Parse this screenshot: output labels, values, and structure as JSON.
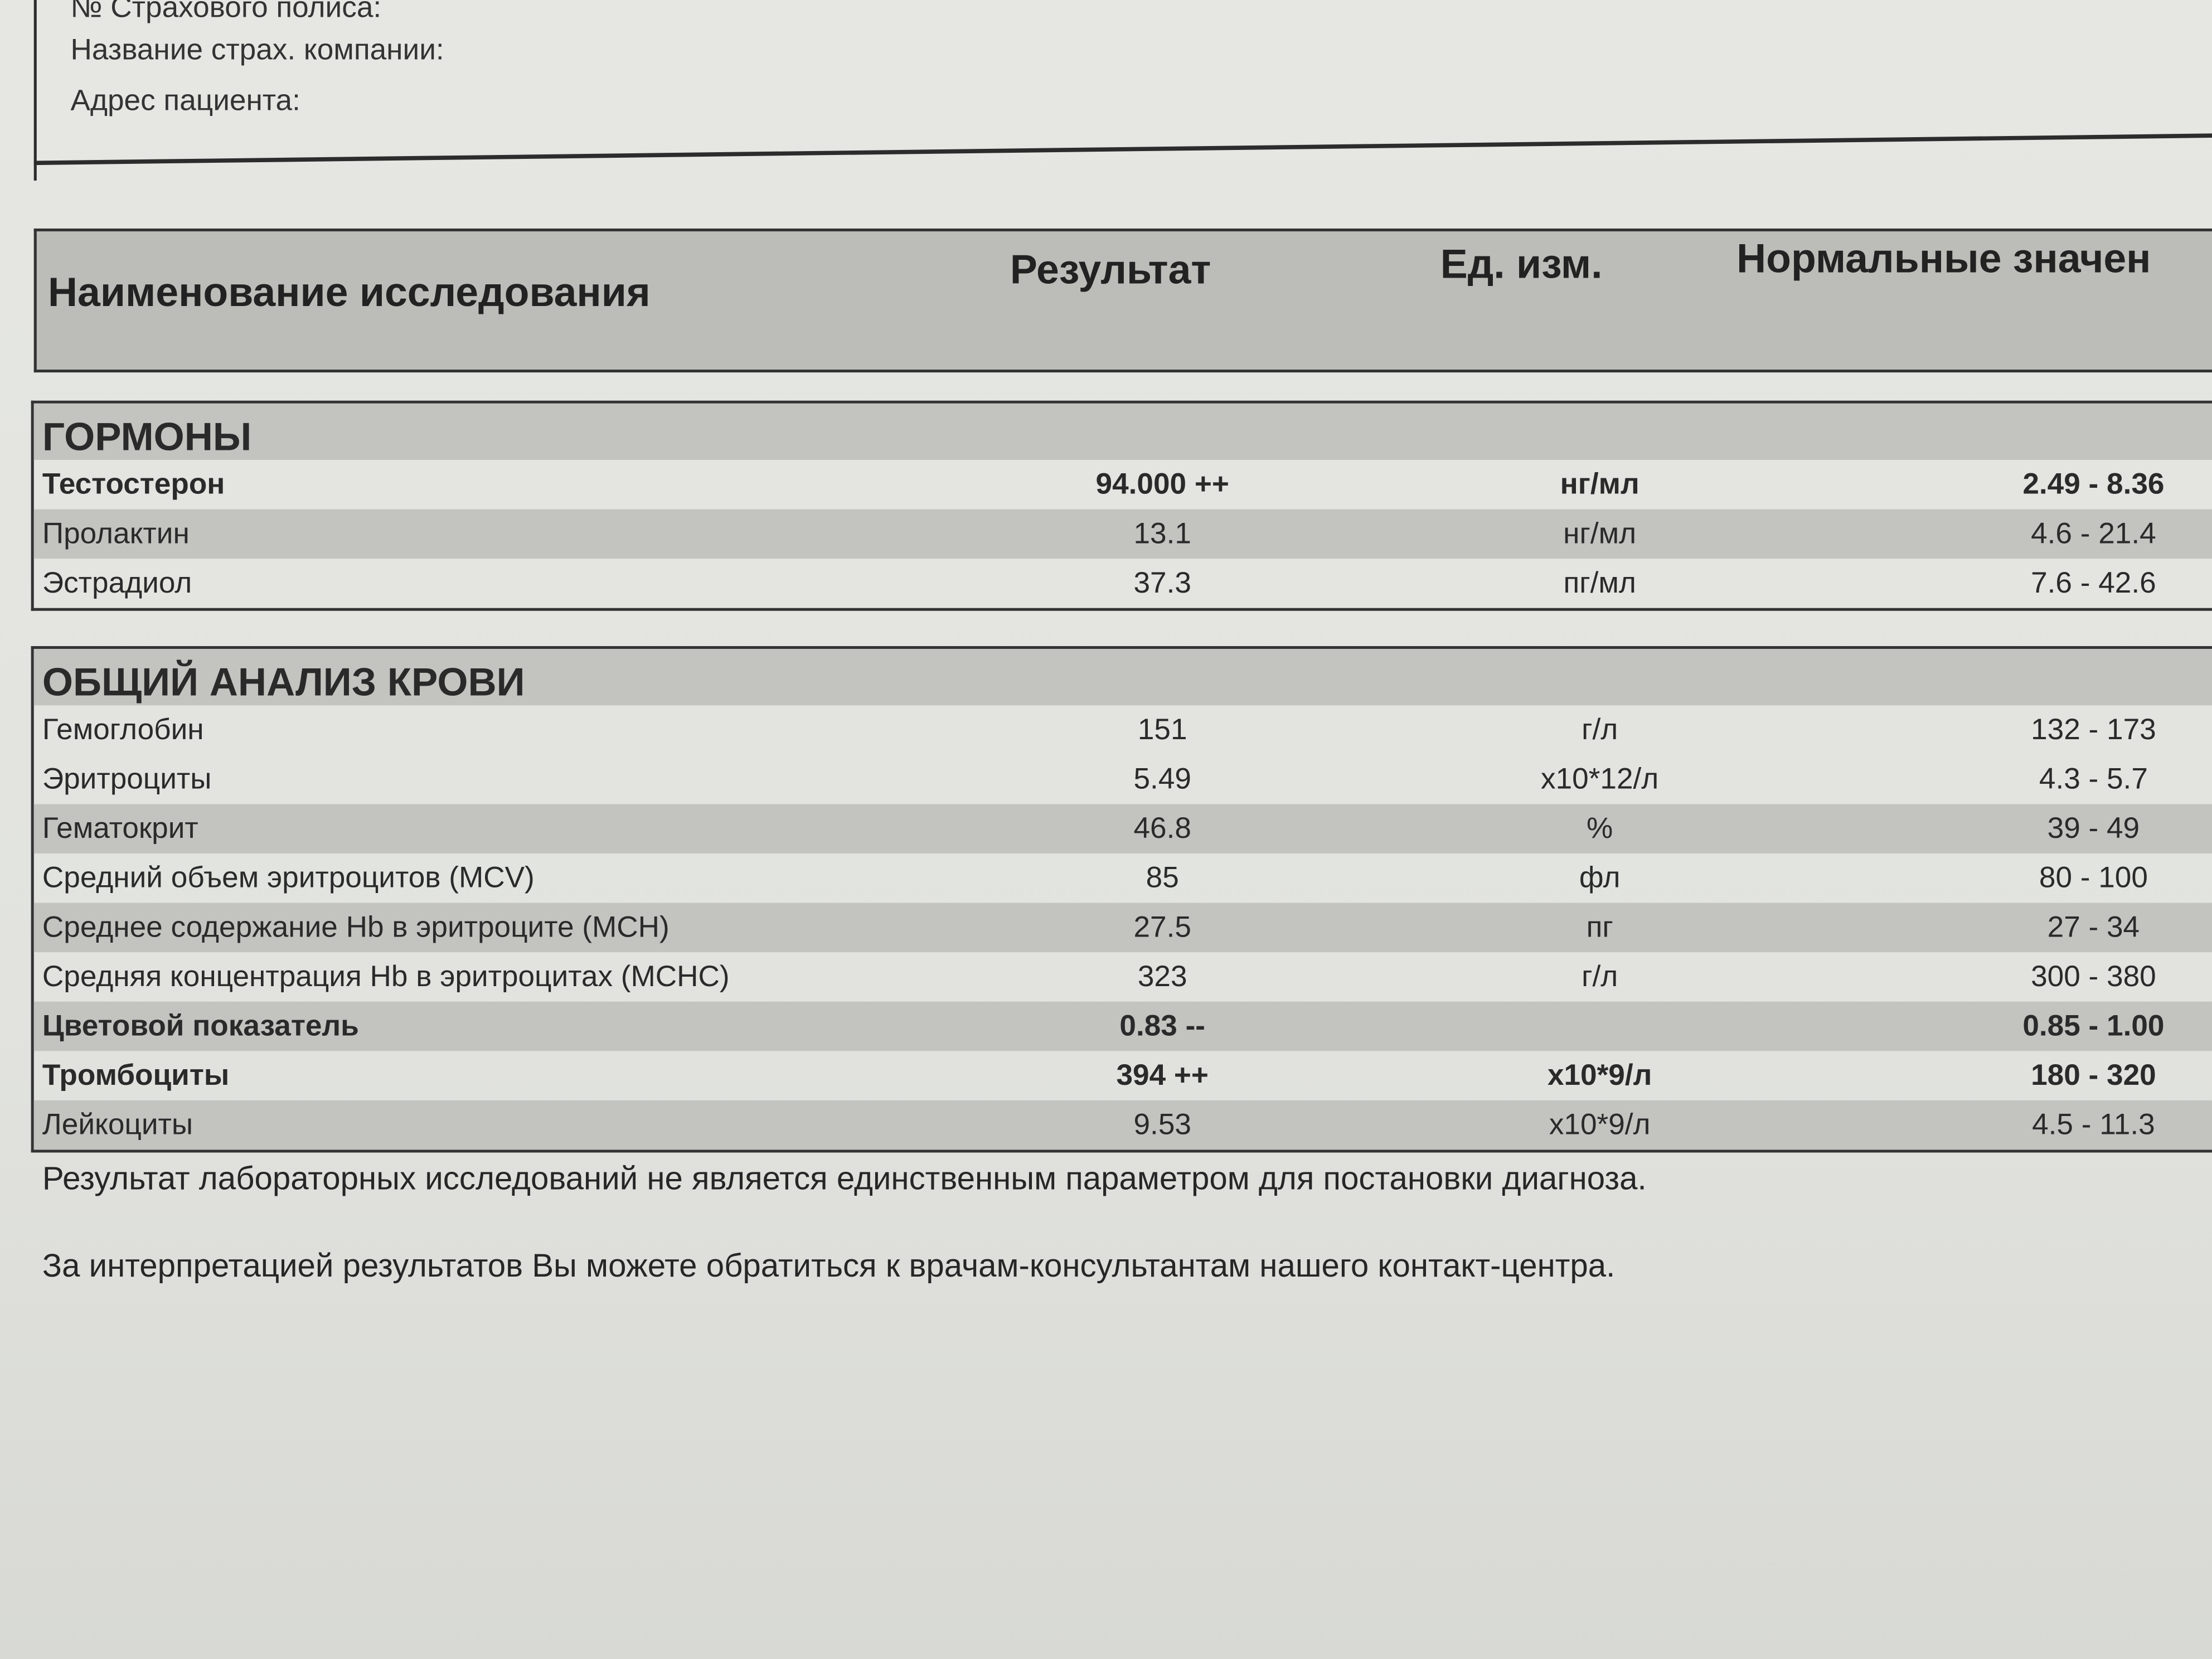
{
  "patient_info": {
    "policy_label": "№ Страхового полиса:",
    "insurer_label": "Название страх. компании:",
    "address_label": "Адрес пациента:"
  },
  "header": {
    "name": "Наименование исследования",
    "result": "Результат",
    "unit": "Ед. изм.",
    "reference": "Нормальные значен"
  },
  "sections": [
    {
      "title": "ГОРМОНЫ",
      "rows": [
        {
          "name": "Тестостерон",
          "result": "94.000 ++",
          "unit": "нг/мл",
          "reference": "2.49 - 8.36",
          "bold": true,
          "shade": false
        },
        {
          "name": "Пролактин",
          "result": "13.1",
          "unit": "нг/мл",
          "reference": "4.6 - 21.4",
          "bold": false,
          "shade": true
        },
        {
          "name": "Эстрадиол",
          "result": "37.3",
          "unit": "пг/мл",
          "reference": "7.6 - 42.6",
          "bold": false,
          "shade": false
        }
      ]
    },
    {
      "title": "ОБЩИЙ АНАЛИЗ КРОВИ",
      "rows": [
        {
          "name": "Гемоглобин",
          "result": "151",
          "unit": "г/л",
          "reference": "132 - 173",
          "bold": false,
          "shade": false
        },
        {
          "name": "Эритроциты",
          "result": "5.49",
          "unit": "х10*12/л",
          "reference": "4.3 - 5.7",
          "bold": false,
          "shade": false
        },
        {
          "name": "Гематокрит",
          "result": "46.8",
          "unit": "%",
          "reference": "39 - 49",
          "bold": false,
          "shade": true
        },
        {
          "name": "Средний объем эритроцитов (MCV)",
          "result": "85",
          "unit": "фл",
          "reference": "80 - 100",
          "bold": false,
          "shade": false
        },
        {
          "name": "Среднее содержание Hb в эритроците (MCH)",
          "result": "27.5",
          "unit": "пг",
          "reference": "27 - 34",
          "bold": false,
          "shade": true
        },
        {
          "name": "Средняя концентрация Hb в эритроцитах (MCHC)",
          "result": "323",
          "unit": "г/л",
          "reference": "300 - 380",
          "bold": false,
          "shade": false
        },
        {
          "name": "Цветовой показатель",
          "result": "0.83 --",
          "unit": "",
          "reference": "0.85 - 1.00",
          "bold": true,
          "shade": true
        },
        {
          "name": "Тромбоциты",
          "result": "394 ++",
          "unit": "х10*9/л",
          "reference": "180 - 320",
          "bold": true,
          "shade": false
        },
        {
          "name": "Лейкоциты",
          "result": "9.53",
          "unit": "х10*9/л",
          "reference": "4.5 - 11.3",
          "bold": false,
          "shade": true
        }
      ]
    }
  ],
  "notes": [
    "Результат лабораторных исследований не является единственным параметром для постановки диагноза.",
    "За интерпретацией результатов Вы можете обратиться к врачам-консультантам нашего контакт-центра."
  ]
}
